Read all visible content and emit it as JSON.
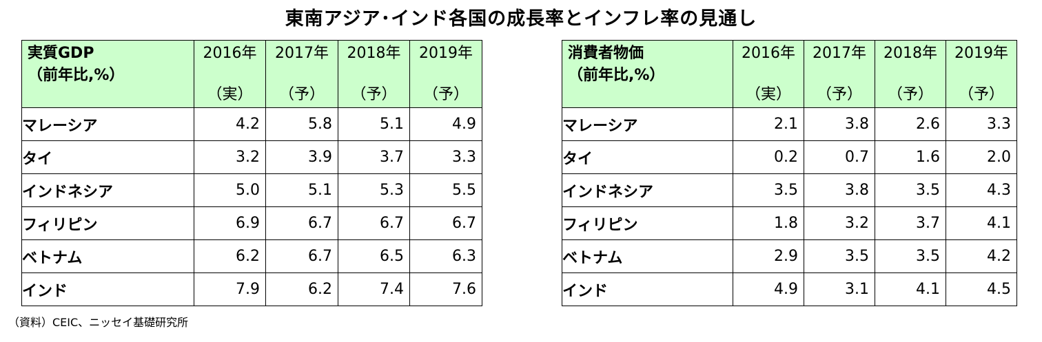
{
  "title": "東南アジア･インド各国の成長率とインフレ率の見通し",
  "source": "（資料）CEIC、ニッセイ基礎研究所",
  "tables": [
    {
      "header": [
        "実質GDP",
        "（前年比,%）"
      ],
      "years": [
        "2016年",
        "2017年",
        "2018年",
        "2019年"
      ],
      "notes": [
        "（実）",
        "（予）",
        "（予）",
        "（予）"
      ],
      "rows": [
        {
          "name": "マレーシア",
          "values": [
            "4.2",
            "5.8",
            "5.1",
            "4.9"
          ]
        },
        {
          "name": "タイ",
          "values": [
            "3.2",
            "3.9",
            "3.7",
            "3.3"
          ]
        },
        {
          "name": "インドネシア",
          "values": [
            "5.0",
            "5.1",
            "5.3",
            "5.5"
          ]
        },
        {
          "name": "フィリピン",
          "values": [
            "6.9",
            "6.7",
            "6.7",
            "6.7"
          ]
        },
        {
          "name": "ベトナム",
          "values": [
            "6.2",
            "6.7",
            "6.5",
            "6.3"
          ]
        },
        {
          "name": "インド",
          "values": [
            "7.9",
            "6.2",
            "7.4",
            "7.6"
          ]
        }
      ]
    },
    {
      "header": [
        "消費者物価",
        "（前年比,%）"
      ],
      "years": [
        "2016年",
        "2017年",
        "2018年",
        "2019年"
      ],
      "notes": [
        "（実）",
        "（予）",
        "（予）",
        "（予）"
      ],
      "rows": [
        {
          "name": "マレーシア",
          "values": [
            "2.1",
            "3.8",
            "2.6",
            "3.3"
          ]
        },
        {
          "name": "タイ",
          "values": [
            "0.2",
            "0.7",
            "1.6",
            "2.0"
          ]
        },
        {
          "name": "インドネシア",
          "values": [
            "3.5",
            "3.8",
            "3.5",
            "4.3"
          ]
        },
        {
          "name": "フィリピン",
          "values": [
            "1.8",
            "3.2",
            "3.7",
            "4.1"
          ]
        },
        {
          "name": "ベトナム",
          "values": [
            "2.9",
            "3.5",
            "3.5",
            "4.2"
          ]
        },
        {
          "name": "インド",
          "values": [
            "4.9",
            "3.1",
            "4.1",
            "4.5"
          ]
        }
      ]
    }
  ]
}
